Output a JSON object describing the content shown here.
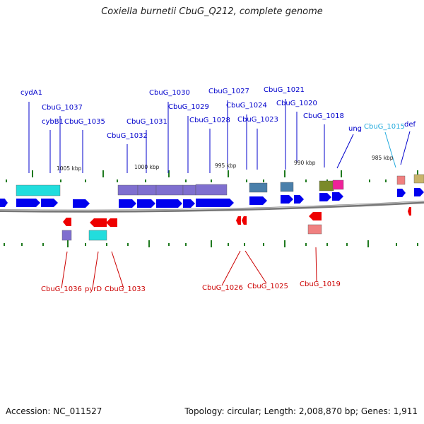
{
  "title": "Coxiella burnetii CbuG_Q212, complete genome",
  "footer": {
    "accession": "Accession: NC_011527",
    "stats": "Topology: circular; Length: 2,008,870 bp; Genes: 1,911"
  },
  "colors": {
    "forward_cds": "#0000ee",
    "reverse_cds": "#ee0000",
    "label_forward": "#0000cc",
    "label_reverse": "#cc0000",
    "label_highlight": "#22aadd",
    "backbone": "#777777",
    "tick": "#1f7a1f",
    "cog_purple": "#7f6fcf",
    "cog_cyan": "#22dddd",
    "cog_steel": "#4a7faa",
    "cog_olive": "#7a8a2a",
    "cog_magenta": "#ee2299",
    "cog_pink": "#f08080",
    "cog_khaki": "#c8b46a"
  },
  "scale_labels": [
    "1005 kbp",
    "1000 kbp",
    "995 kbp",
    "990 kbp",
    "985 kbp"
  ],
  "top_labels": [
    {
      "text": "cydA1",
      "tone": "forward"
    },
    {
      "text": "CbuG_1037",
      "tone": "forward"
    },
    {
      "text": "cybB1",
      "tone": "forward"
    },
    {
      "text": "CbuG_1035",
      "tone": "forward"
    },
    {
      "text": "CbuG_1032",
      "tone": "forward"
    },
    {
      "text": "CbuG_1031",
      "tone": "forward"
    },
    {
      "text": "CbuG_1030",
      "tone": "forward"
    },
    {
      "text": "CbuG_1029",
      "tone": "forward"
    },
    {
      "text": "CbuG_1028",
      "tone": "forward"
    },
    {
      "text": "CbuG_1027",
      "tone": "forward"
    },
    {
      "text": "CbuG_1024",
      "tone": "forward"
    },
    {
      "text": "CbuG_1023",
      "tone": "forward"
    },
    {
      "text": "CbuG_1021",
      "tone": "forward"
    },
    {
      "text": "CbuG_1020",
      "tone": "forward"
    },
    {
      "text": "CbuG_1018",
      "tone": "forward"
    },
    {
      "text": "ung",
      "tone": "forward"
    },
    {
      "text": "CbuG_1015",
      "tone": "highlight"
    },
    {
      "text": "def",
      "tone": "forward"
    }
  ],
  "bottom_labels": [
    {
      "text": "CbuG_1036",
      "tone": "reverse"
    },
    {
      "text": "pyrD",
      "tone": "reverse"
    },
    {
      "text": "CbuG_1033",
      "tone": "reverse"
    },
    {
      "text": "CbuG_1026",
      "tone": "reverse"
    },
    {
      "text": "CbuG_1025",
      "tone": "reverse"
    },
    {
      "text": "CbuG_1019",
      "tone": "reverse"
    }
  ]
}
